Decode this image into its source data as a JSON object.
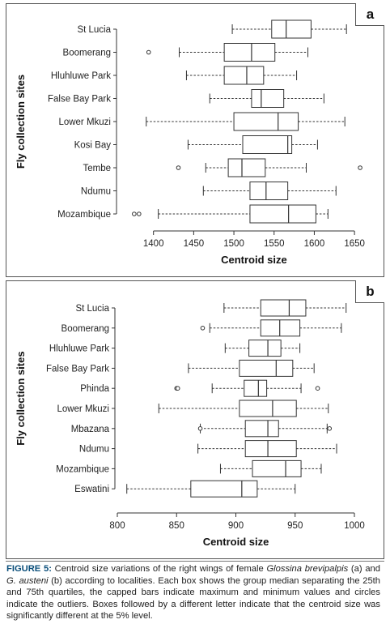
{
  "chart_data": [
    {
      "type": "boxplot",
      "panel_letter": "a",
      "xlabel": "Centroid size",
      "ylabel": "Fly collection sites",
      "xlim": [
        1350,
        1670
      ],
      "xticks": [
        1400,
        1450,
        1500,
        1550,
        1600,
        1650
      ],
      "categories": [
        "St Lucia",
        "Boomerang",
        "Hluhluwe Park",
        "False Bay Park",
        "Lower Mkuzi",
        "Kosi Bay",
        "Tembe",
        "Ndumu",
        "Mozambique"
      ],
      "boxes": [
        {
          "min": 1498,
          "q1": 1547,
          "median": 1565,
          "q3": 1596,
          "max": 1640,
          "outliers": []
        },
        {
          "min": 1432,
          "q1": 1488,
          "median": 1522,
          "q3": 1551,
          "max": 1592,
          "outliers": [
            1394
          ]
        },
        {
          "min": 1441,
          "q1": 1488,
          "median": 1516,
          "q3": 1537,
          "max": 1578,
          "outliers": []
        },
        {
          "min": 1470,
          "q1": 1522,
          "median": 1534,
          "q3": 1562,
          "max": 1612,
          "outliers": []
        },
        {
          "min": 1391,
          "q1": 1500,
          "median": 1555,
          "q3": 1580,
          "max": 1638,
          "outliers": []
        },
        {
          "min": 1443,
          "q1": 1511,
          "median": 1567,
          "q3": 1572,
          "max": 1604,
          "outliers": []
        },
        {
          "min": 1465,
          "q1": 1493,
          "median": 1510,
          "q3": 1539,
          "max": 1590,
          "outliers": [
            1431,
            1657
          ]
        },
        {
          "min": 1462,
          "q1": 1520,
          "median": 1540,
          "q3": 1567,
          "max": 1627,
          "outliers": []
        },
        {
          "min": 1406,
          "q1": 1520,
          "median": 1568,
          "q3": 1602,
          "max": 1617,
          "outliers": [
            1376,
            1382
          ]
        }
      ]
    },
    {
      "type": "boxplot",
      "panel_letter": "b",
      "xlabel": "Centroid size",
      "ylabel": "Fly collection sites",
      "xlim": [
        800,
        1000
      ],
      "xticks": [
        800,
        850,
        900,
        950,
        1000
      ],
      "categories": [
        "St Lucia",
        "Boomerang",
        "Hluhluwe Park",
        "False Bay Park",
        "Phinda",
        "Lower Mkuzi",
        "Mbazana",
        "Ndumu",
        "Mozambique",
        "Eswatini"
      ],
      "boxes": [
        {
          "min": 890,
          "q1": 921,
          "median": 945,
          "q3": 959,
          "max": 993,
          "outliers": []
        },
        {
          "min": 878,
          "q1": 921,
          "median": 937,
          "q3": 954,
          "max": 989,
          "outliers": [
            872
          ]
        },
        {
          "min": 891,
          "q1": 911,
          "median": 927,
          "q3": 938,
          "max": 954,
          "outliers": []
        },
        {
          "min": 860,
          "q1": 903,
          "median": 934,
          "q3": 948,
          "max": 966,
          "outliers": []
        },
        {
          "min": 880,
          "q1": 907,
          "median": 919,
          "q3": 926,
          "max": 955,
          "outliers": [
            850,
            851,
            969
          ]
        },
        {
          "min": 835,
          "q1": 903,
          "median": 931,
          "q3": 951,
          "max": 978,
          "outliers": []
        },
        {
          "min": 870,
          "q1": 908,
          "median": 927,
          "q3": 936,
          "max": 977,
          "outliers": [
            870,
            979
          ]
        },
        {
          "min": 868,
          "q1": 908,
          "median": 927,
          "q3": 951,
          "max": 985,
          "outliers": []
        },
        {
          "min": 887,
          "q1": 914,
          "median": 942,
          "q3": 955,
          "max": 972,
          "outliers": []
        },
        {
          "min": 808,
          "q1": 862,
          "median": 905,
          "q3": 918,
          "max": 950,
          "outliers": []
        }
      ]
    }
  ],
  "caption": {
    "figure_label": "FIGURE 5:",
    "text_1": " Centroid size variations of the right wings of female ",
    "species_1": "Glossina brevipalpis",
    "text_2": " (a) and ",
    "species_2": "G. austeni",
    "text_3": " (b) according to localities. Each box shows the group median separating the 25th and 75th quartiles, the capped bars indicate maximum and minimum values and circles indicate the outliers. Boxes followed by a different letter indicate that the centroid size was significantly different at the 5% level."
  }
}
